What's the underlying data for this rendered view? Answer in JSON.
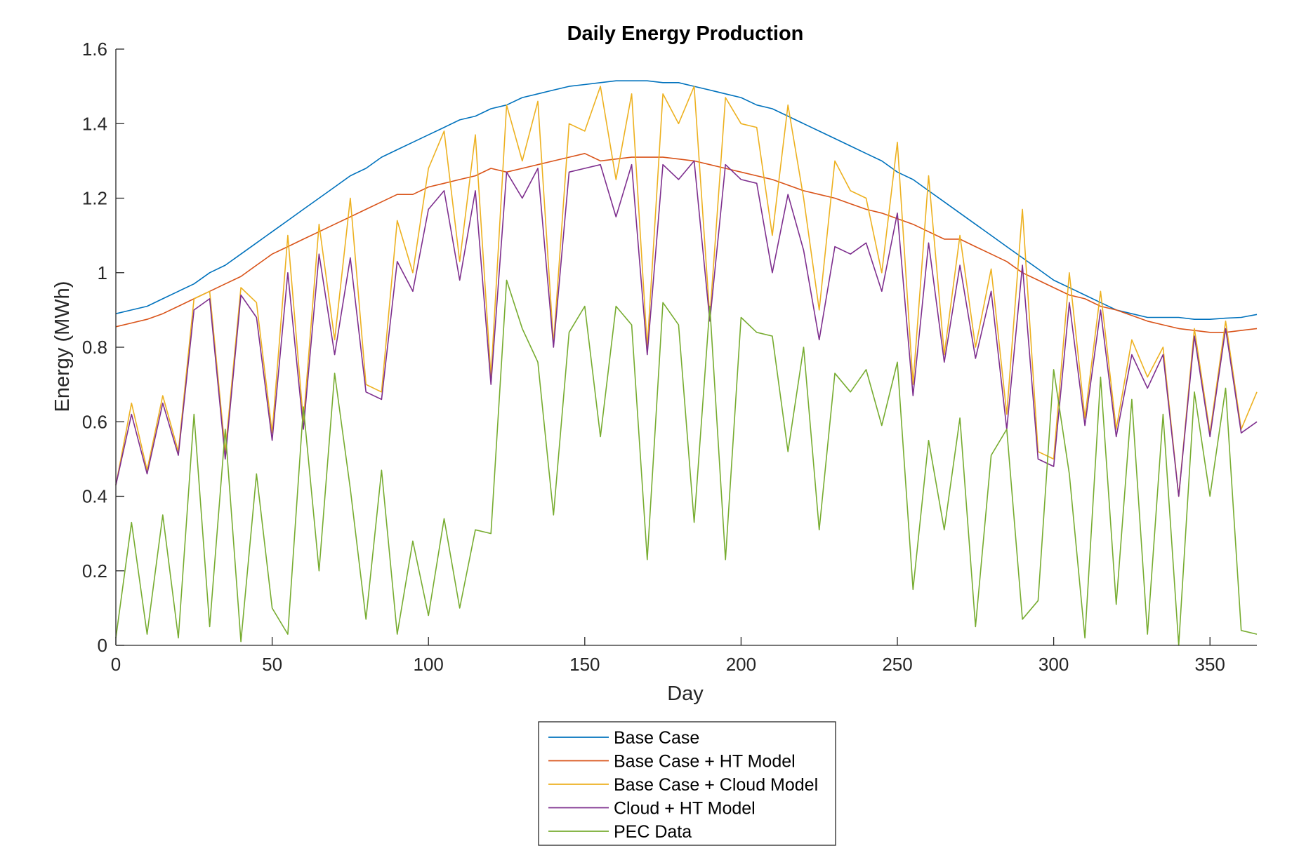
{
  "chart_data": {
    "type": "line",
    "title": "Daily Energy Production",
    "xlabel": "Day",
    "ylabel": "Energy (MWh)",
    "xlim": [
      0,
      365
    ],
    "ylim": [
      0,
      1.6
    ],
    "xticks": [
      0,
      50,
      100,
      150,
      200,
      250,
      300,
      350
    ],
    "yticks": [
      0,
      0.2,
      0.4,
      0.6,
      0.8,
      1,
      1.2,
      1.4,
      1.6
    ],
    "ytick_labels": [
      "0",
      "0.2",
      "0.4",
      "0.6",
      "0.8",
      "1",
      "1.2",
      "1.4",
      "1.6"
    ],
    "grid": false,
    "legend_position": "bottom-center",
    "x_sample_step": 5,
    "series": [
      {
        "name": "Base Case",
        "color": "#0072BD",
        "x": [
          0,
          5,
          10,
          15,
          20,
          25,
          30,
          35,
          40,
          45,
          50,
          55,
          60,
          65,
          70,
          75,
          80,
          85,
          90,
          95,
          100,
          105,
          110,
          115,
          120,
          125,
          130,
          135,
          140,
          145,
          150,
          155,
          160,
          165,
          170,
          175,
          180,
          185,
          190,
          195,
          200,
          205,
          210,
          215,
          220,
          225,
          230,
          235,
          240,
          245,
          250,
          255,
          260,
          265,
          270,
          275,
          280,
          285,
          290,
          295,
          300,
          305,
          310,
          315,
          320,
          325,
          330,
          335,
          340,
          345,
          350,
          355,
          360,
          365
        ],
        "values": [
          0.89,
          0.9,
          0.91,
          0.93,
          0.95,
          0.97,
          1.0,
          1.02,
          1.05,
          1.08,
          1.11,
          1.14,
          1.17,
          1.2,
          1.23,
          1.26,
          1.28,
          1.31,
          1.33,
          1.35,
          1.37,
          1.39,
          1.41,
          1.42,
          1.44,
          1.45,
          1.47,
          1.48,
          1.49,
          1.5,
          1.505,
          1.51,
          1.515,
          1.515,
          1.515,
          1.51,
          1.51,
          1.5,
          1.49,
          1.48,
          1.47,
          1.45,
          1.44,
          1.42,
          1.4,
          1.38,
          1.36,
          1.34,
          1.32,
          1.3,
          1.27,
          1.25,
          1.22,
          1.19,
          1.16,
          1.13,
          1.1,
          1.07,
          1.04,
          1.01,
          0.98,
          0.96,
          0.94,
          0.92,
          0.9,
          0.89,
          0.88,
          0.88,
          0.88,
          0.875,
          0.875,
          0.878,
          0.88,
          0.888
        ]
      },
      {
        "name": "Base Case + HT Model",
        "color": "#D95319",
        "x": [
          0,
          5,
          10,
          15,
          20,
          25,
          30,
          35,
          40,
          45,
          50,
          55,
          60,
          65,
          70,
          75,
          80,
          85,
          90,
          95,
          100,
          105,
          110,
          115,
          120,
          125,
          130,
          135,
          140,
          145,
          150,
          155,
          160,
          165,
          170,
          175,
          180,
          185,
          190,
          195,
          200,
          205,
          210,
          215,
          220,
          225,
          230,
          235,
          240,
          245,
          250,
          255,
          260,
          265,
          270,
          275,
          280,
          285,
          290,
          295,
          300,
          305,
          310,
          315,
          320,
          325,
          330,
          335,
          340,
          345,
          350,
          355,
          360,
          365
        ],
        "values": [
          0.855,
          0.865,
          0.875,
          0.89,
          0.91,
          0.93,
          0.95,
          0.97,
          0.99,
          1.02,
          1.05,
          1.07,
          1.09,
          1.11,
          1.13,
          1.15,
          1.17,
          1.19,
          1.21,
          1.21,
          1.23,
          1.24,
          1.25,
          1.26,
          1.28,
          1.27,
          1.28,
          1.29,
          1.3,
          1.31,
          1.32,
          1.3,
          1.305,
          1.31,
          1.31,
          1.31,
          1.305,
          1.3,
          1.29,
          1.28,
          1.27,
          1.26,
          1.25,
          1.235,
          1.22,
          1.21,
          1.2,
          1.185,
          1.17,
          1.16,
          1.145,
          1.13,
          1.11,
          1.09,
          1.09,
          1.07,
          1.05,
          1.03,
          1.0,
          0.98,
          0.96,
          0.94,
          0.93,
          0.91,
          0.9,
          0.885,
          0.87,
          0.86,
          0.85,
          0.845,
          0.84,
          0.84,
          0.845,
          0.85
        ]
      },
      {
        "name": "Base Case + Cloud Model",
        "color": "#EDB120",
        "x": [
          0,
          5,
          10,
          15,
          20,
          25,
          30,
          35,
          40,
          45,
          50,
          55,
          60,
          65,
          70,
          75,
          80,
          85,
          90,
          95,
          100,
          105,
          110,
          115,
          120,
          125,
          130,
          135,
          140,
          145,
          150,
          155,
          160,
          165,
          170,
          175,
          180,
          185,
          190,
          195,
          200,
          205,
          210,
          215,
          220,
          225,
          230,
          235,
          240,
          245,
          250,
          255,
          260,
          265,
          270,
          275,
          280,
          285,
          290,
          295,
          300,
          305,
          310,
          315,
          320,
          325,
          330,
          335,
          340,
          345,
          350,
          355,
          360,
          365
        ],
        "values": [
          0.43,
          0.65,
          0.47,
          0.67,
          0.52,
          0.93,
          0.95,
          0.52,
          0.96,
          0.92,
          0.57,
          1.1,
          0.6,
          1.13,
          0.82,
          1.2,
          0.7,
          0.68,
          1.14,
          1.0,
          1.28,
          1.38,
          1.03,
          1.37,
          0.72,
          1.45,
          1.3,
          1.46,
          0.81,
          1.4,
          1.38,
          1.5,
          1.25,
          1.48,
          0.8,
          1.48,
          1.4,
          1.5,
          0.88,
          1.47,
          1.4,
          1.39,
          1.1,
          1.45,
          1.2,
          0.9,
          1.3,
          1.22,
          1.2,
          1.0,
          1.35,
          0.7,
          1.26,
          0.78,
          1.1,
          0.8,
          1.01,
          0.62,
          1.17,
          0.52,
          0.5,
          1.0,
          0.61,
          0.95,
          0.58,
          0.82,
          0.72,
          0.8,
          0.4,
          0.85,
          0.57,
          0.87,
          0.58,
          0.68
        ]
      },
      {
        "name": "Cloud + HT Model",
        "color": "#7E2F8E",
        "x": [
          0,
          5,
          10,
          15,
          20,
          25,
          30,
          35,
          40,
          45,
          50,
          55,
          60,
          65,
          70,
          75,
          80,
          85,
          90,
          95,
          100,
          105,
          110,
          115,
          120,
          125,
          130,
          135,
          140,
          145,
          150,
          155,
          160,
          165,
          170,
          175,
          180,
          185,
          190,
          195,
          200,
          205,
          210,
          215,
          220,
          225,
          230,
          235,
          240,
          245,
          250,
          255,
          260,
          265,
          270,
          275,
          280,
          285,
          290,
          295,
          300,
          305,
          310,
          315,
          320,
          325,
          330,
          335,
          340,
          345,
          350,
          355,
          360,
          365
        ],
        "values": [
          0.43,
          0.62,
          0.46,
          0.65,
          0.51,
          0.9,
          0.93,
          0.5,
          0.94,
          0.88,
          0.55,
          1.0,
          0.58,
          1.05,
          0.78,
          1.04,
          0.68,
          0.66,
          1.03,
          0.95,
          1.17,
          1.22,
          0.98,
          1.22,
          0.7,
          1.27,
          1.2,
          1.28,
          0.8,
          1.27,
          1.28,
          1.29,
          1.15,
          1.29,
          0.78,
          1.29,
          1.25,
          1.3,
          0.87,
          1.29,
          1.25,
          1.24,
          1.0,
          1.21,
          1.06,
          0.82,
          1.07,
          1.05,
          1.08,
          0.95,
          1.16,
          0.67,
          1.08,
          0.76,
          1.02,
          0.77,
          0.95,
          0.58,
          1.02,
          0.5,
          0.48,
          0.92,
          0.59,
          0.9,
          0.56,
          0.78,
          0.69,
          0.78,
          0.4,
          0.83,
          0.56,
          0.85,
          0.57,
          0.6
        ]
      },
      {
        "name": "PEC Data",
        "color": "#77AC30",
        "x": [
          0,
          5,
          10,
          15,
          20,
          25,
          30,
          35,
          40,
          45,
          50,
          55,
          60,
          65,
          70,
          75,
          80,
          85,
          90,
          95,
          100,
          105,
          110,
          115,
          120,
          125,
          130,
          135,
          140,
          145,
          150,
          155,
          160,
          165,
          170,
          175,
          180,
          185,
          190,
          195,
          200,
          205,
          210,
          215,
          220,
          225,
          230,
          235,
          240,
          245,
          250,
          255,
          260,
          265,
          270,
          275,
          280,
          285,
          290,
          295,
          300,
          305,
          310,
          315,
          320,
          325,
          330,
          335,
          340,
          345,
          350,
          355,
          360,
          365
        ],
        "values": [
          0.02,
          0.33,
          0.03,
          0.35,
          0.02,
          0.62,
          0.05,
          0.58,
          0.01,
          0.46,
          0.1,
          0.03,
          0.64,
          0.2,
          0.73,
          0.42,
          0.07,
          0.47,
          0.03,
          0.28,
          0.08,
          0.34,
          0.1,
          0.31,
          0.3,
          0.98,
          0.85,
          0.76,
          0.35,
          0.84,
          0.91,
          0.56,
          0.91,
          0.86,
          0.23,
          0.92,
          0.86,
          0.33,
          0.91,
          0.23,
          0.88,
          0.84,
          0.83,
          0.52,
          0.8,
          0.31,
          0.73,
          0.68,
          0.74,
          0.59,
          0.76,
          0.15,
          0.55,
          0.31,
          0.61,
          0.05,
          0.51,
          0.58,
          0.07,
          0.12,
          0.74,
          0.46,
          0.02,
          0.72,
          0.11,
          0.66,
          0.03,
          0.62,
          0.0,
          0.68,
          0.4,
          0.69,
          0.04,
          0.03
        ]
      }
    ]
  }
}
